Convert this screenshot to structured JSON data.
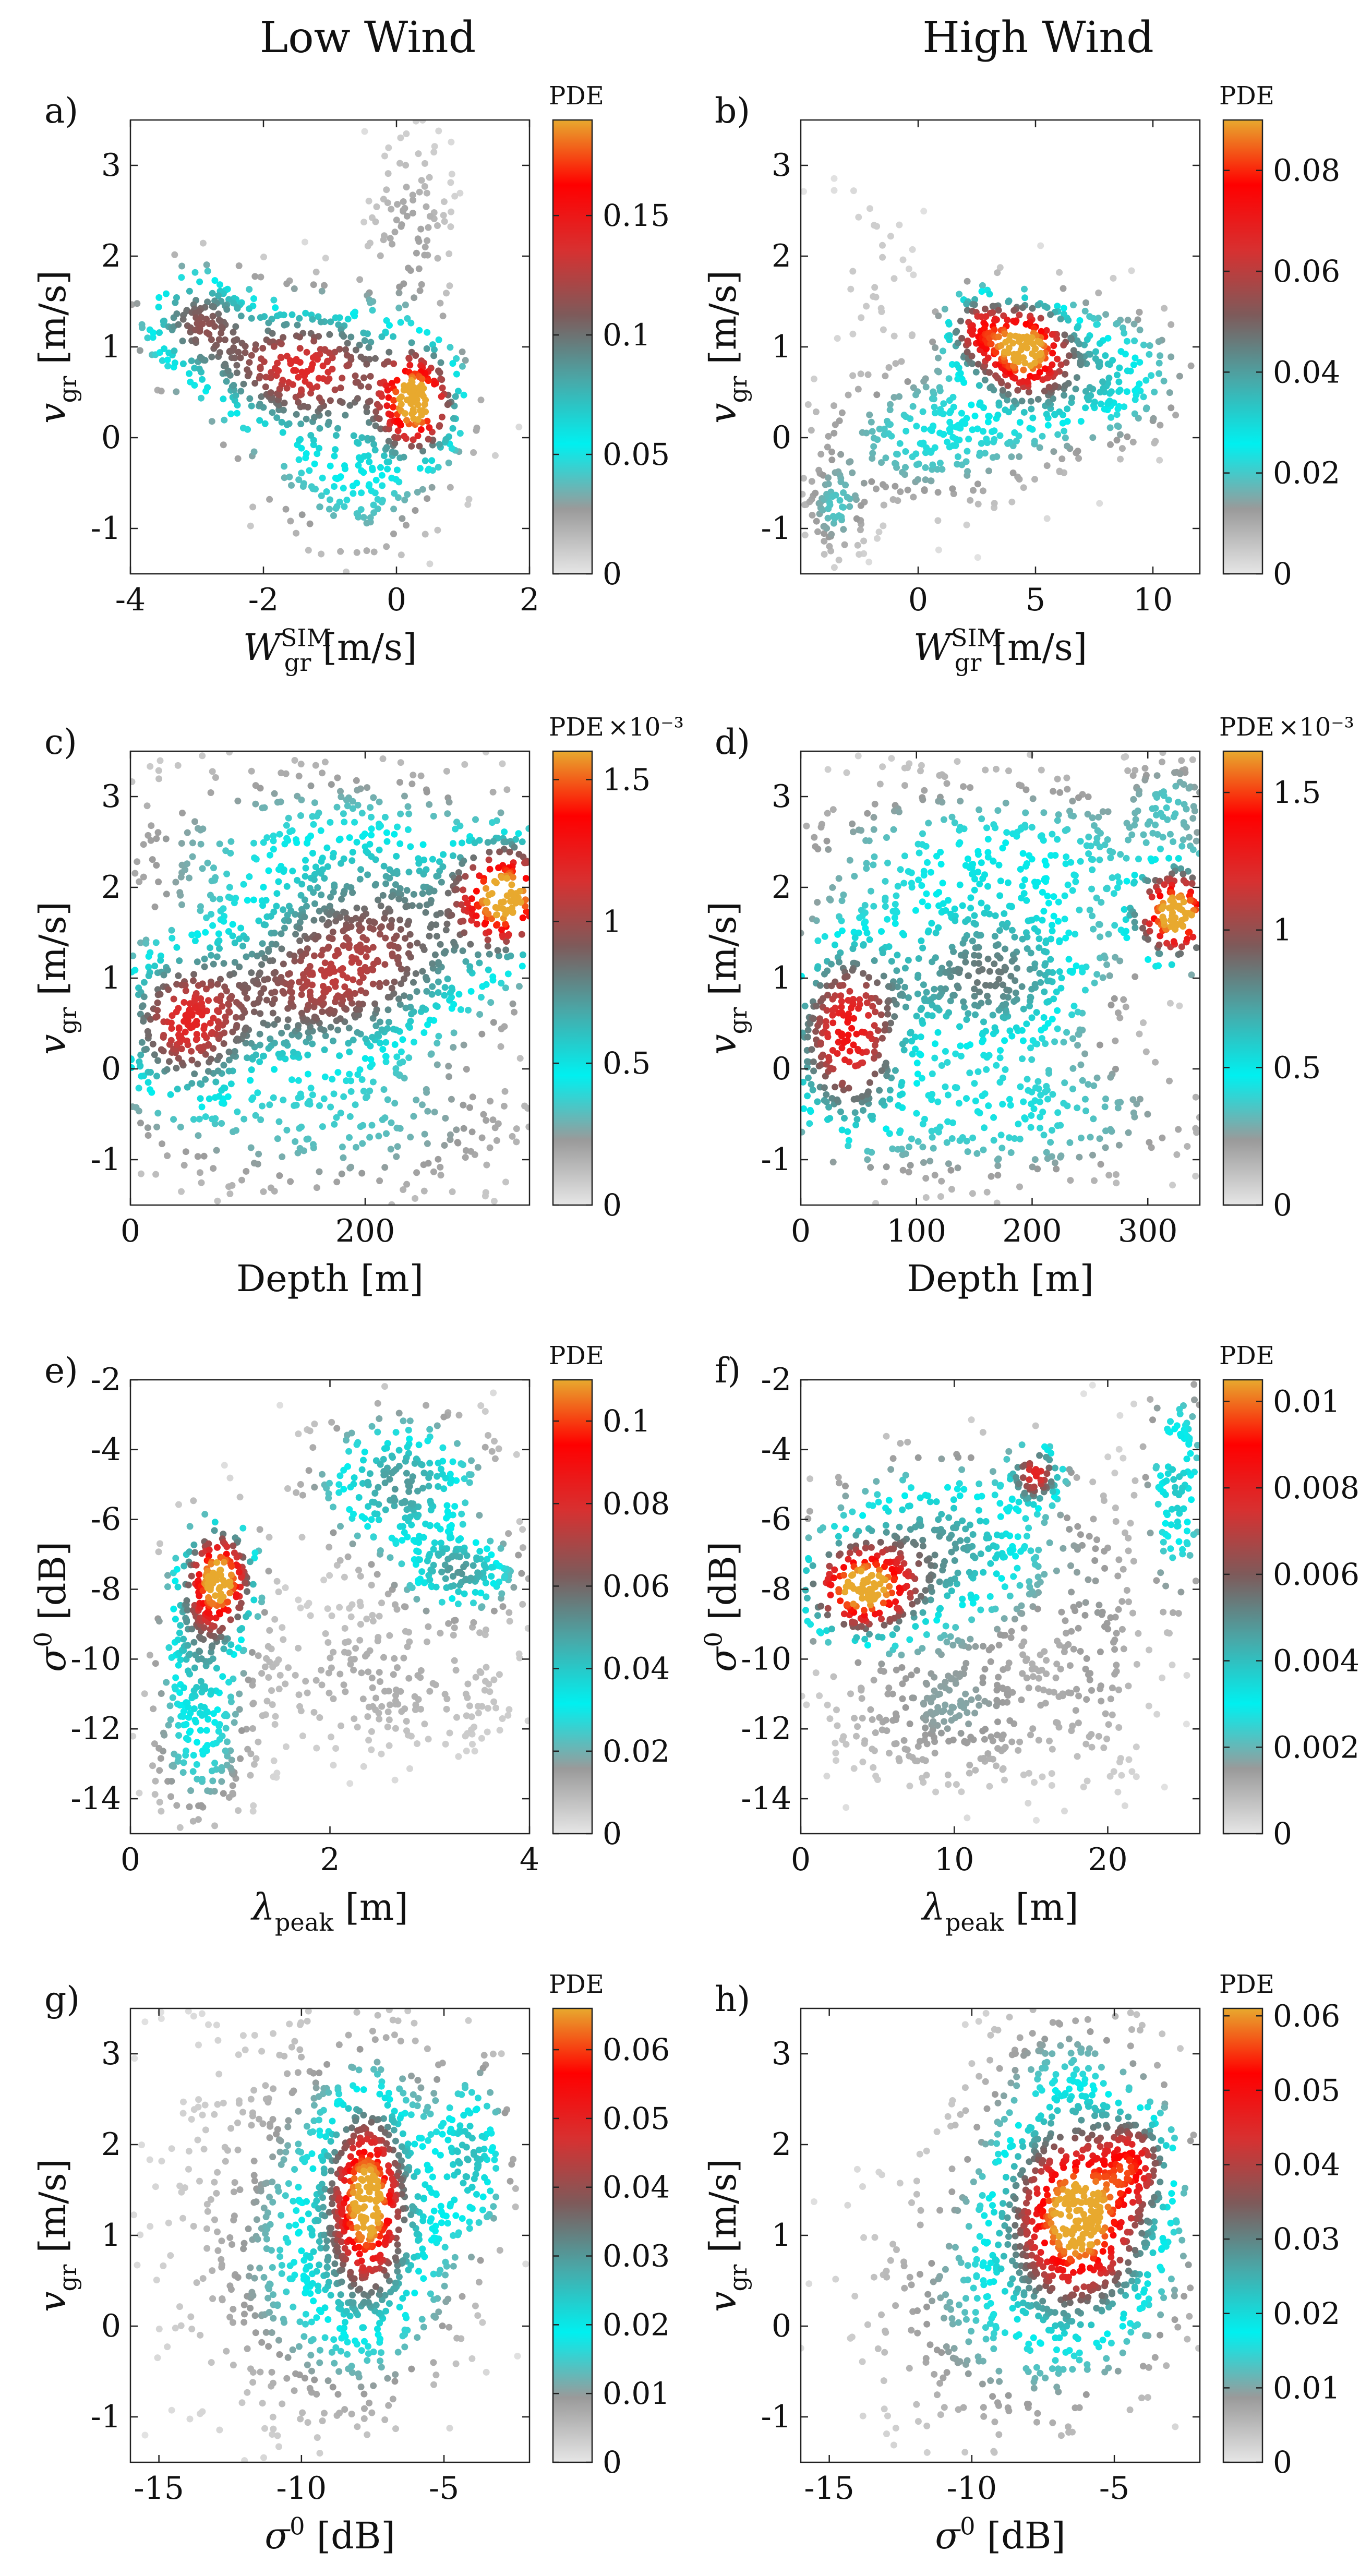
{
  "figure": {
    "column_titles": [
      "Low Wind",
      "High Wind"
    ],
    "colormap_stops": [
      "#e6e6e6",
      "#9a9a9a",
      "#00f0f0",
      "#4aa7a7",
      "#7e5a5a",
      "#d83030",
      "#ff0000",
      "#e8a92e"
    ]
  },
  "chart_data": [
    {
      "id": "a",
      "panel_label": "a)",
      "column": "Low Wind",
      "type": "scatter",
      "title": "",
      "xlabel": "W",
      "xlabel_sub": "gr",
      "xlabel_sup": "SIM",
      "xlabel_unit": "[m/s]",
      "ylabel": "v",
      "ylabel_sub": "gr",
      "ylabel_unit": "[m/s]",
      "xlim": [
        -4,
        2
      ],
      "ylim": [
        -1.5,
        3.5
      ],
      "xticks": [
        -4,
        -2,
        0,
        2
      ],
      "xtick_labels": [
        "-4",
        "-2",
        "0",
        "2"
      ],
      "yticks": [
        -1,
        0,
        1,
        2,
        3
      ],
      "ytick_labels": [
        "-1",
        "0",
        "1",
        "2",
        "3"
      ],
      "colorbar": {
        "label": "PDE",
        "multiplier": "",
        "range": [
          0,
          0.19
        ],
        "ticks": [
          0,
          0.05,
          0.1,
          0.15
        ],
        "tick_labels": [
          "0",
          "0.05",
          "0.1",
          "0.15"
        ]
      },
      "clusters": [
        {
          "x": 0.3,
          "y": 0.4,
          "sx": 0.35,
          "sy": 0.35,
          "w": 2.4,
          "n": 160
        },
        {
          "x": -1.5,
          "y": 0.8,
          "sx": 0.9,
          "sy": 0.4,
          "w": 1.3,
          "n": 260
        },
        {
          "x": -3.0,
          "y": 1.3,
          "sx": 0.5,
          "sy": 0.35,
          "w": 1.0,
          "n": 130
        },
        {
          "x": -0.8,
          "y": 0.2,
          "sx": 1.0,
          "sy": 0.7,
          "w": 0.5,
          "n": 170
        },
        {
          "x": 0.2,
          "y": 2.2,
          "sx": 0.4,
          "sy": 0.7,
          "w": 0.15,
          "n": 110
        },
        {
          "x": -0.5,
          "y": -0.7,
          "sx": 0.6,
          "sy": 0.4,
          "w": 0.15,
          "n": 80
        }
      ]
    },
    {
      "id": "b",
      "panel_label": "b)",
      "column": "High Wind",
      "type": "scatter",
      "title": "",
      "xlabel": "W",
      "xlabel_sub": "gr",
      "xlabel_sup": "SIM",
      "xlabel_unit": "[m/s]",
      "ylabel": "v",
      "ylabel_sub": "gr",
      "ylabel_unit": "[m/s]",
      "xlim": [
        -5,
        12
      ],
      "ylim": [
        -1.5,
        3.5
      ],
      "xticks": [
        0,
        5,
        10
      ],
      "xtick_labels": [
        "0",
        "5",
        "10"
      ],
      "yticks": [
        -1,
        0,
        1,
        2,
        3
      ],
      "ytick_labels": [
        "-1",
        "0",
        "1",
        "2",
        "3"
      ],
      "colorbar": {
        "label": "PDE",
        "multiplier": "",
        "range": [
          0,
          0.09
        ],
        "ticks": [
          0,
          0.02,
          0.04,
          0.06,
          0.08
        ],
        "tick_labels": [
          "0",
          "0.02",
          "0.04",
          "0.06",
          "0.08"
        ]
      },
      "clusters": [
        {
          "x": 4.5,
          "y": 1.0,
          "sx": 1.1,
          "sy": 0.3,
          "w": 2.4,
          "n": 150
        },
        {
          "x": 2.5,
          "y": 1.2,
          "sx": 0.8,
          "sy": 0.25,
          "w": 1.4,
          "n": 90
        },
        {
          "x": 6.5,
          "y": 0.7,
          "sx": 2.8,
          "sy": 0.45,
          "w": 0.8,
          "n": 280
        },
        {
          "x": 0.5,
          "y": 0.0,
          "sx": 3.0,
          "sy": 0.45,
          "w": 0.4,
          "n": 260
        },
        {
          "x": -3.5,
          "y": -0.8,
          "sx": 0.8,
          "sy": 0.3,
          "w": 0.3,
          "n": 90
        },
        {
          "x": -2.0,
          "y": 1.8,
          "sx": 1.2,
          "sy": 0.6,
          "w": 0.06,
          "n": 30
        }
      ]
    },
    {
      "id": "c",
      "panel_label": "c)",
      "column": "Low Wind",
      "type": "scatter",
      "title": "",
      "xlabel": "Depth",
      "xlabel_sub": "",
      "xlabel_sup": "",
      "xlabel_unit": "[m]",
      "ylabel": "v",
      "ylabel_sub": "gr",
      "ylabel_unit": "[m/s]",
      "xlim": [
        0,
        340
      ],
      "ylim": [
        -1.5,
        3.5
      ],
      "xticks": [
        0,
        200
      ],
      "xtick_labels": [
        "0",
        "200"
      ],
      "yticks": [
        -1,
        0,
        1,
        2,
        3
      ],
      "ytick_labels": [
        "-1",
        "0",
        "1",
        "2",
        "3"
      ],
      "colorbar": {
        "label": "PDE",
        "multiplier": "×10⁻³",
        "range": [
          0,
          0.0016
        ],
        "ticks": [
          0,
          0.0005,
          0.001,
          0.0015
        ],
        "tick_labels": [
          "0",
          "0.5",
          "1",
          "1.5"
        ]
      },
      "clusters": [
        {
          "x": 320,
          "y": 1.9,
          "sx": 25,
          "sy": 0.35,
          "w": 2.4,
          "n": 150
        },
        {
          "x": 45,
          "y": 0.5,
          "sx": 35,
          "sy": 0.5,
          "w": 1.4,
          "n": 260
        },
        {
          "x": 150,
          "y": 0.8,
          "sx": 60,
          "sy": 0.5,
          "w": 0.9,
          "n": 350
        },
        {
          "x": 220,
          "y": 1.4,
          "sx": 70,
          "sy": 0.6,
          "w": 0.9,
          "n": 330
        },
        {
          "x": 170,
          "y": 2.4,
          "sx": 120,
          "sy": 0.6,
          "w": 0.35,
          "n": 380
        },
        {
          "x": 170,
          "y": -0.6,
          "sx": 110,
          "sy": 0.55,
          "w": 0.3,
          "n": 280
        }
      ]
    },
    {
      "id": "d",
      "panel_label": "d)",
      "column": "High Wind",
      "type": "scatter",
      "title": "",
      "xlabel": "Depth",
      "xlabel_sub": "",
      "xlabel_sup": "",
      "xlabel_unit": "[m]",
      "ylabel": "v",
      "ylabel_sub": "gr",
      "ylabel_unit": "[m/s]",
      "xlim": [
        0,
        345
      ],
      "ylim": [
        -1.5,
        3.5
      ],
      "xticks": [
        0,
        100,
        200,
        300
      ],
      "xtick_labels": [
        "0",
        "100",
        "200",
        "300"
      ],
      "yticks": [
        -1,
        0,
        1,
        2,
        3
      ],
      "ytick_labels": [
        "-1",
        "0",
        "1",
        "2",
        "3"
      ],
      "colorbar": {
        "label": "PDE",
        "multiplier": "×10⁻³",
        "range": [
          0,
          0.00165
        ],
        "ticks": [
          0,
          0.0005,
          0.001,
          0.0015
        ],
        "tick_labels": [
          "0",
          "0.5",
          "1",
          "1.5"
        ]
      },
      "clusters": [
        {
          "x": 325,
          "y": 1.7,
          "sx": 22,
          "sy": 0.3,
          "w": 2.4,
          "n": 140
        },
        {
          "x": 40,
          "y": 0.4,
          "sx": 30,
          "sy": 0.6,
          "w": 1.5,
          "n": 260
        },
        {
          "x": 160,
          "y": 1.0,
          "sx": 60,
          "sy": 0.5,
          "w": 0.85,
          "n": 330
        },
        {
          "x": 170,
          "y": 2.3,
          "sx": 110,
          "sy": 0.55,
          "w": 0.4,
          "n": 380
        },
        {
          "x": 170,
          "y": -0.5,
          "sx": 110,
          "sy": 0.5,
          "w": 0.35,
          "n": 300
        },
        {
          "x": 320,
          "y": 3.0,
          "sx": 25,
          "sy": 0.3,
          "w": 0.2,
          "n": 80
        }
      ]
    },
    {
      "id": "e",
      "panel_label": "e)",
      "column": "Low Wind",
      "type": "scatter",
      "title": "",
      "xlabel": "λ",
      "xlabel_sub": "peak",
      "xlabel_sup": "",
      "xlabel_unit": "[m]",
      "ylabel": "σ",
      "ylabel_sub": "",
      "ylabel_sup": "0",
      "ylabel_unit": "[dB]",
      "xlim": [
        0,
        4
      ],
      "ylim": [
        -15,
        -2
      ],
      "xticks": [
        0,
        2,
        4
      ],
      "xtick_labels": [
        "0",
        "2",
        "4"
      ],
      "yticks": [
        -14,
        -12,
        -10,
        -8,
        -6,
        -4,
        -2
      ],
      "ytick_labels": [
        "-14",
        "-12",
        "-10",
        "-8",
        "-6",
        "-4",
        "-2"
      ],
      "colorbar": {
        "label": "PDE",
        "multiplier": "",
        "range": [
          0,
          0.11
        ],
        "ticks": [
          0,
          0.02,
          0.04,
          0.06,
          0.08,
          0.1
        ],
        "tick_labels": [
          "0",
          "0.02",
          "0.04",
          "0.06",
          "0.08",
          "0.1"
        ]
      },
      "clusters": [
        {
          "x": 0.9,
          "y": -7.7,
          "sx": 0.2,
          "sy": 0.9,
          "w": 2.4,
          "n": 160
        },
        {
          "x": 0.7,
          "y": -9.5,
          "sx": 0.25,
          "sy": 1.6,
          "w": 0.7,
          "n": 160
        },
        {
          "x": 2.7,
          "y": -5.0,
          "sx": 0.5,
          "sy": 1.2,
          "w": 0.8,
          "n": 250
        },
        {
          "x": 3.3,
          "y": -7.5,
          "sx": 0.35,
          "sy": 0.7,
          "w": 0.75,
          "n": 150
        },
        {
          "x": 0.7,
          "y": -12.8,
          "sx": 0.3,
          "sy": 1.2,
          "w": 0.3,
          "n": 130
        },
        {
          "x": 2.5,
          "y": -10.5,
          "sx": 1.0,
          "sy": 1.4,
          "w": 0.12,
          "n": 280
        }
      ]
    },
    {
      "id": "f",
      "panel_label": "f)",
      "column": "High Wind",
      "type": "scatter",
      "title": "",
      "xlabel": "λ",
      "xlabel_sub": "peak",
      "xlabel_sup": "",
      "xlabel_unit": "[m]",
      "ylabel": "σ",
      "ylabel_sub": "",
      "ylabel_sup": "0",
      "ylabel_unit": "[dB]",
      "xlim": [
        0,
        26
      ],
      "ylim": [
        -15,
        -2
      ],
      "xticks": [
        0,
        10,
        20
      ],
      "xtick_labels": [
        "0",
        "10",
        "20"
      ],
      "yticks": [
        -14,
        -12,
        -10,
        -8,
        -6,
        -4,
        -2
      ],
      "ytick_labels": [
        "-14",
        "-12",
        "-10",
        "-8",
        "-6",
        "-4",
        "-2"
      ],
      "colorbar": {
        "label": "PDE",
        "multiplier": "",
        "range": [
          0,
          0.0105
        ],
        "ticks": [
          0,
          0.002,
          0.004,
          0.006,
          0.008,
          0.01
        ],
        "tick_labels": [
          "0",
          "0.002",
          "0.004",
          "0.006",
          "0.008",
          "0.01"
        ]
      },
      "clusters": [
        {
          "x": 4.0,
          "y": -8.0,
          "sx": 2.2,
          "sy": 0.8,
          "w": 2.4,
          "n": 170
        },
        {
          "x": 15.3,
          "y": -4.7,
          "sx": 1.0,
          "sy": 0.5,
          "w": 1.5,
          "n": 70
        },
        {
          "x": 9.0,
          "y": -6.8,
          "sx": 4.5,
          "sy": 1.5,
          "w": 0.8,
          "n": 330
        },
        {
          "x": 24.5,
          "y": -5.0,
          "sx": 1.2,
          "sy": 2.0,
          "w": 0.6,
          "n": 130
        },
        {
          "x": 10.0,
          "y": -11.5,
          "sx": 5.0,
          "sy": 1.3,
          "w": 0.2,
          "n": 330
        },
        {
          "x": 19.5,
          "y": -9.0,
          "sx": 2.0,
          "sy": 2.5,
          "w": 0.15,
          "n": 130
        }
      ]
    },
    {
      "id": "g",
      "panel_label": "g)",
      "column": "Low Wind",
      "type": "scatter",
      "title": "",
      "xlabel": "σ",
      "xlabel_sub": "",
      "xlabel_sup": "0",
      "xlabel_unit": "[dB]",
      "ylabel": "v",
      "ylabel_sub": "gr",
      "ylabel_unit": "[m/s]",
      "xlim": [
        -16,
        -2
      ],
      "ylim": [
        -1.5,
        3.5
      ],
      "xticks": [
        -15,
        -10,
        -5
      ],
      "xtick_labels": [
        "-15",
        "-10",
        "-5"
      ],
      "yticks": [
        -1,
        0,
        1,
        2,
        3
      ],
      "ytick_labels": [
        "-1",
        "0",
        "1",
        "2",
        "3"
      ],
      "colorbar": {
        "label": "PDE",
        "multiplier": "",
        "range": [
          0,
          0.066
        ],
        "ticks": [
          0,
          0.01,
          0.02,
          0.03,
          0.04,
          0.05,
          0.06
        ],
        "tick_labels": [
          "0",
          "0.01",
          "0.02",
          "0.03",
          "0.04",
          "0.05",
          "0.06"
        ]
      },
      "clusters": [
        {
          "x": -7.7,
          "y": 1.4,
          "sx": 0.7,
          "sy": 0.55,
          "w": 2.4,
          "n": 220
        },
        {
          "x": -7.5,
          "y": 1.2,
          "sx": 1.8,
          "sy": 1.0,
          "w": 0.9,
          "n": 420
        },
        {
          "x": -4.0,
          "y": 1.9,
          "sx": 0.8,
          "sy": 0.6,
          "w": 0.7,
          "n": 110
        },
        {
          "x": -10.0,
          "y": 0.5,
          "sx": 2.5,
          "sy": 0.9,
          "w": 0.25,
          "n": 350
        },
        {
          "x": -11.0,
          "y": 2.3,
          "sx": 2.5,
          "sy": 0.9,
          "w": 0.06,
          "n": 160
        }
      ]
    },
    {
      "id": "h",
      "panel_label": "h)",
      "column": "High Wind",
      "type": "scatter",
      "title": "",
      "xlabel": "σ",
      "xlabel_sub": "",
      "xlabel_sup": "0",
      "xlabel_unit": "[dB]",
      "ylabel": "v",
      "ylabel_sub": "gr",
      "ylabel_unit": "[m/s]",
      "xlim": [
        -16,
        -2
      ],
      "ylim": [
        -1.5,
        3.5
      ],
      "xticks": [
        -15,
        -10,
        -5
      ],
      "xtick_labels": [
        "-15",
        "-10",
        "-5"
      ],
      "yticks": [
        -1,
        0,
        1,
        2,
        3
      ],
      "ytick_labels": [
        "-1",
        "0",
        "1",
        "2",
        "3"
      ],
      "colorbar": {
        "label": "PDE",
        "multiplier": "",
        "range": [
          0,
          0.061
        ],
        "ticks": [
          0,
          0.01,
          0.02,
          0.03,
          0.04,
          0.05,
          0.06
        ],
        "tick_labels": [
          "0",
          "0.01",
          "0.02",
          "0.03",
          "0.04",
          "0.05",
          "0.06"
        ]
      },
      "clusters": [
        {
          "x": -6.3,
          "y": 1.2,
          "sx": 1.3,
          "sy": 0.55,
          "w": 2.4,
          "n": 230
        },
        {
          "x": -4.3,
          "y": 1.8,
          "sx": 0.7,
          "sy": 0.3,
          "w": 1.4,
          "n": 90
        },
        {
          "x": -6.0,
          "y": 1.3,
          "sx": 2.2,
          "sy": 1.0,
          "w": 0.9,
          "n": 440
        },
        {
          "x": -9.0,
          "y": 0.2,
          "sx": 2.8,
          "sy": 0.9,
          "w": 0.3,
          "n": 360
        },
        {
          "x": -7.0,
          "y": 2.8,
          "sx": 1.5,
          "sy": 0.5,
          "w": 0.12,
          "n": 120
        }
      ]
    }
  ]
}
